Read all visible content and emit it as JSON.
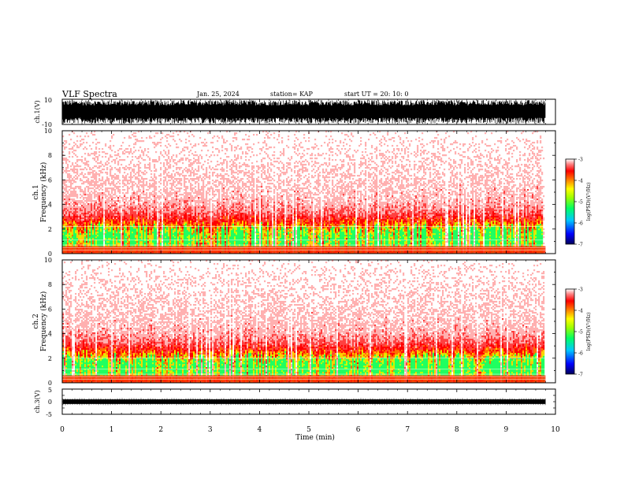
{
  "header": {
    "title": "VLF Spectra",
    "date": "Jan. 25, 2024",
    "station": "station= KAP",
    "start": "start  UT  =   20: 10: 0"
  },
  "colors": {
    "spectrogram_scale": [
      "#000080",
      "#0000ff",
      "#00a0ff",
      "#00ff80",
      "#80ff00",
      "#ffff00",
      "#ff8000",
      "#ff0000",
      "#ff6060",
      "#ffffff"
    ],
    "trace": "#000000"
  },
  "chart_data": [
    {
      "type": "line",
      "name": "ch.1 waveform",
      "ylabel": "ch.1(V)",
      "ylim": [
        -10,
        10
      ],
      "yticks": [
        "10",
        "-10"
      ],
      "xlim": [
        0,
        10
      ],
      "description_values": {
        "amplitude_min": -10,
        "amplitude_max": 10,
        "data_end_min": 9.8
      }
    },
    {
      "type": "heatmap",
      "name": "ch.1 spectrogram",
      "ylabel": "ch.1\nFrequency (kHz)",
      "ylabel_lines": [
        "ch.1",
        "Frequency  (kHz)"
      ],
      "ylim": [
        0,
        10
      ],
      "yticks": [
        "0",
        "2",
        "4",
        "6",
        "8",
        "10"
      ],
      "xlim": [
        0,
        10
      ],
      "colorbar": {
        "label": "log(PSD)(V²/Hz)",
        "range": [
          -7,
          -3
        ],
        "ticks": [
          "-3",
          "-4",
          "-5",
          "-6",
          "-7"
        ]
      },
      "band_lines_khz": [
        0.3,
        0.5,
        0.7,
        1.1,
        2.2
      ]
    },
    {
      "type": "heatmap",
      "name": "ch.2 spectrogram",
      "ylabel_lines": [
        "ch.2",
        "Frequency  (kHz)"
      ],
      "ylim": [
        0,
        10
      ],
      "yticks": [
        "0",
        "2",
        "4",
        "6",
        "8",
        "10"
      ],
      "xlim": [
        0,
        10
      ],
      "colorbar": {
        "label": "log(PSD)(V²/Hz)",
        "range": [
          -7,
          -3
        ],
        "ticks": [
          "-3",
          "-4",
          "-5",
          "-6",
          "-7"
        ]
      },
      "band_lines_khz": [
        0.3,
        0.5,
        0.7,
        1.1,
        2.0
      ]
    },
    {
      "type": "line",
      "name": "ch.3 waveform",
      "ylabel": "ch.3(V)",
      "ylim": [
        -5,
        5
      ],
      "yticks": [
        "5",
        "0",
        "-5"
      ],
      "xlim": [
        0,
        10
      ],
      "xlabel": "Time  (min)",
      "xticks": [
        "0",
        "1",
        "2",
        "3",
        "4",
        "5",
        "6",
        "7",
        "8",
        "9",
        "10"
      ]
    }
  ]
}
